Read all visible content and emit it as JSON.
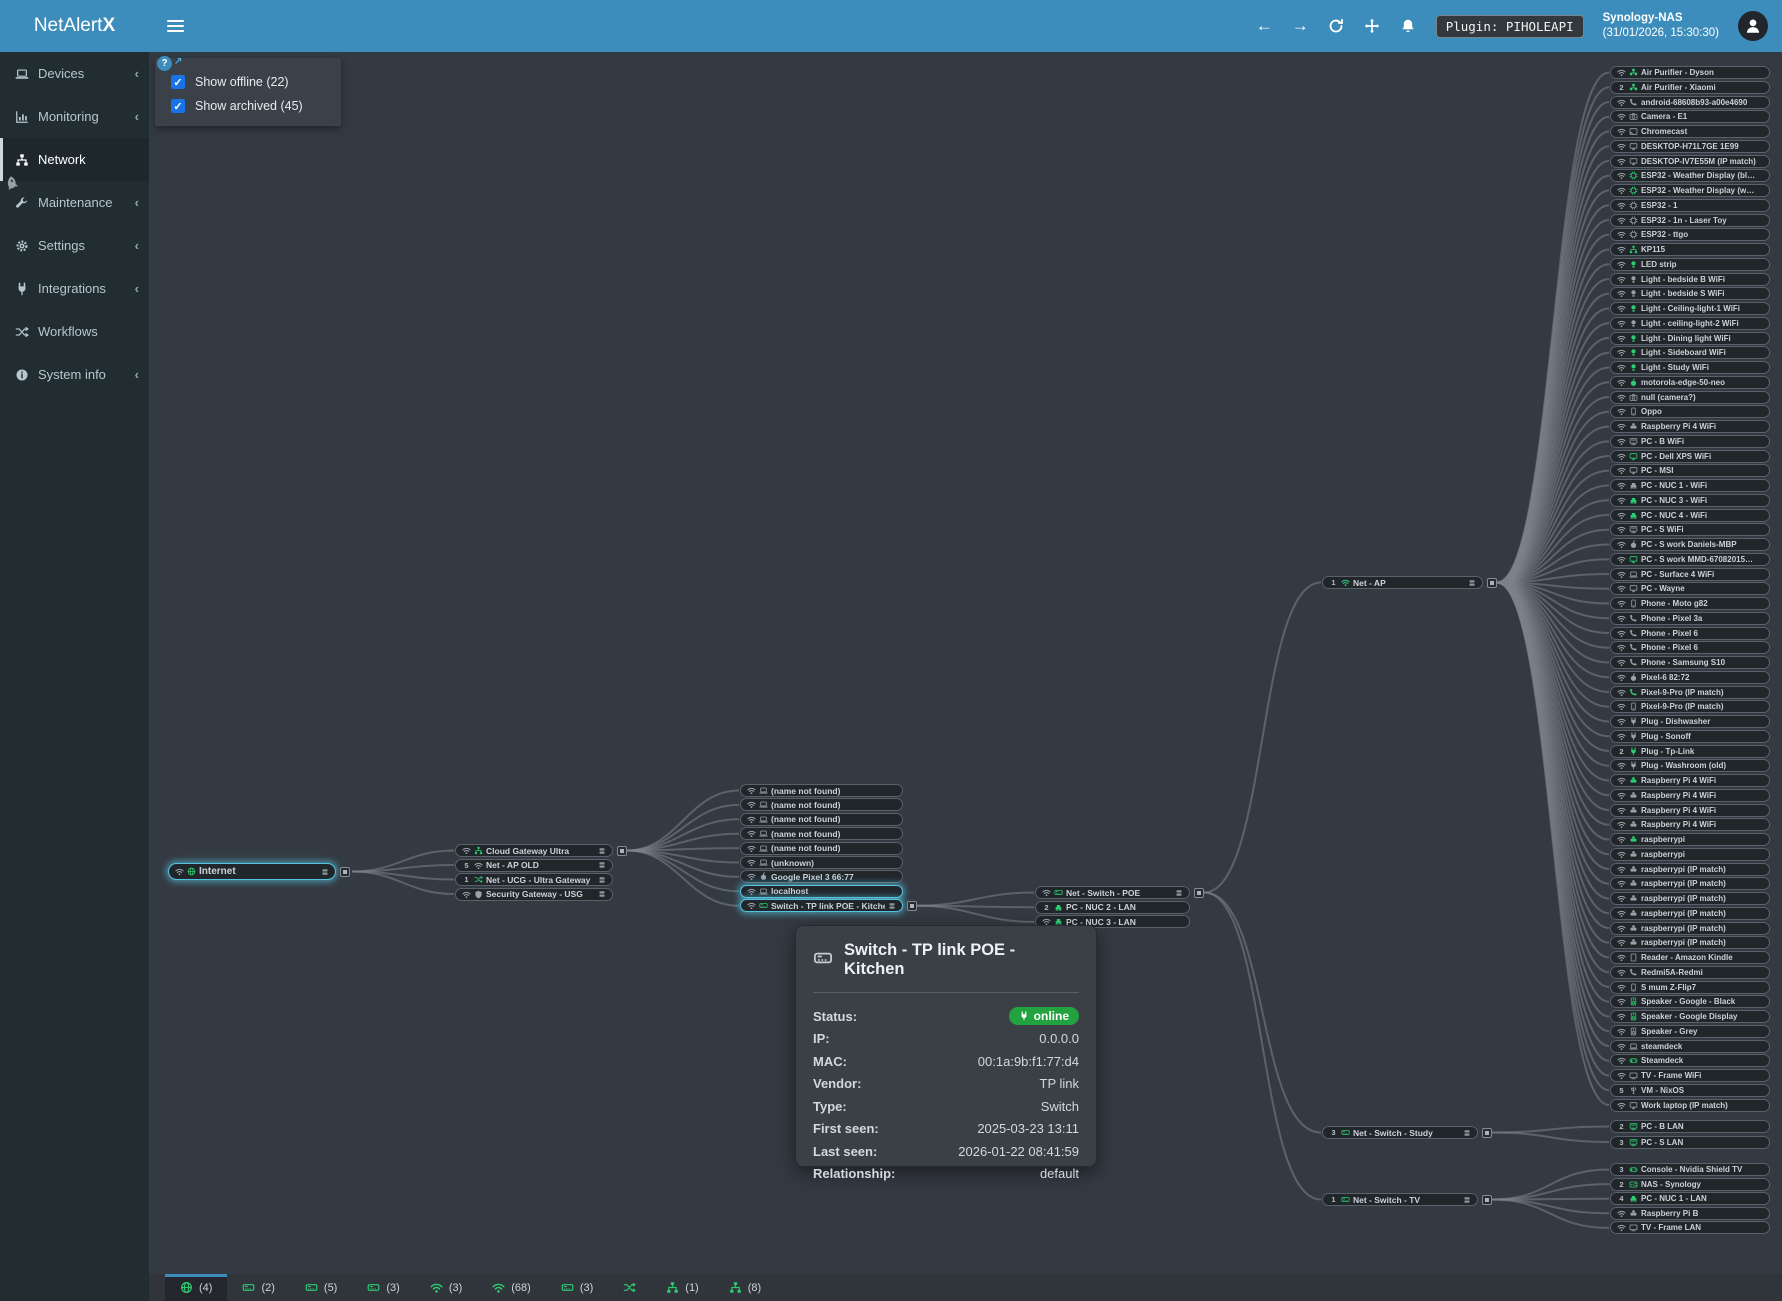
{
  "header": {
    "app_name": "NetAlert",
    "app_sup": "x",
    "nav_icons": [
      "back-arrow",
      "forward-arrow",
      "refresh",
      "move",
      "notifications"
    ],
    "plugin_badge": "Plugin: PIHOLEAPI",
    "device_name": "Synology-NAS",
    "timestamp": "(31/01/2026, 15:30:30)"
  },
  "sidebar": {
    "items": [
      {
        "label": "Devices",
        "icon": "laptop",
        "chevron": true
      },
      {
        "label": "Monitoring",
        "icon": "chart",
        "chevron": true
      },
      {
        "label": "Network",
        "icon": "hub",
        "chevron": false,
        "active": true
      },
      {
        "label": "Maintenance",
        "icon": "wrench",
        "chevron": true
      },
      {
        "label": "Settings",
        "icon": "gear",
        "chevron": true
      },
      {
        "label": "Integrations",
        "icon": "plug",
        "chevron": true
      },
      {
        "label": "Workflows",
        "icon": "shuffle",
        "chevron": false
      },
      {
        "label": "System info",
        "icon": "info",
        "chevron": true
      }
    ]
  },
  "filters": {
    "help": "?",
    "external_arrow": "↗",
    "offline_label": "Show offline (22)",
    "archived_label": "Show archived (45)",
    "offline_checked": true,
    "archived_checked": true
  },
  "graph": {
    "internet": {
      "label": "Internet",
      "icon": "globe",
      "green": true,
      "stack": true,
      "expand": true,
      "selected": true
    },
    "gateways": [
      {
        "label": "Cloud Gateway Ultra",
        "icon": "hub",
        "green": true,
        "stack": true,
        "expand": true
      },
      {
        "label": "Net - AP OLD",
        "icon": "wifi2",
        "prefix": "5",
        "stack": true
      },
      {
        "label": "Net - UCG - Ultra Gateway",
        "icon": "shuffle",
        "green": true,
        "prefix": "1",
        "stack": true
      },
      {
        "label": "Security Gateway - USG",
        "icon": "shield",
        "stack": true
      }
    ],
    "mid": [
      {
        "label": "(name not found)",
        "icon": "laptop"
      },
      {
        "label": "(name not found)",
        "icon": "laptop"
      },
      {
        "label": "(name not found)",
        "icon": "laptop"
      },
      {
        "label": "(name not found)",
        "icon": "laptop"
      },
      {
        "label": "(name not found)",
        "icon": "laptop"
      },
      {
        "label": "(unknown)",
        "icon": "laptop"
      },
      {
        "label": "Google Pixel 3 66:77",
        "icon": "apple"
      },
      {
        "label": "localhost",
        "icon": "laptop",
        "selected": true
      },
      {
        "label": "Switch - TP link POE - Kitchen",
        "icon": "switch",
        "green": true,
        "stack": true,
        "expand": true,
        "selected": true
      }
    ],
    "poe": [
      {
        "label": "Net - Switch - POE",
        "icon": "switch",
        "green": true,
        "stack": true,
        "expand": true
      },
      {
        "label": "PC - NUC 2 - LAN",
        "icon": "ethernet",
        "green": true,
        "prefix": "2"
      },
      {
        "label": "PC - NUC 3 - LAN",
        "icon": "ethernet",
        "green": true
      }
    ],
    "hubs": [
      {
        "label": "Net - AP",
        "icon": "wifi2",
        "green": true,
        "prefix": "1",
        "stack": true,
        "expand": true
      },
      {
        "label": "Net - Switch - Study",
        "icon": "switch",
        "green": true,
        "prefix": "3",
        "stack": true,
        "expand": true
      },
      {
        "label": "Net - Switch - TV",
        "icon": "switch",
        "green": true,
        "prefix": "1",
        "stack": true,
        "expand": true
      }
    ],
    "col1": [
      {
        "label": "Air Purifier - Dyson",
        "icon": "fan",
        "green": true
      },
      {
        "label": "Air Purifier - Xiaomi",
        "icon": "fan",
        "green": true,
        "prefix": "2"
      },
      {
        "label": "android-68608b93-a00e4690",
        "icon": "phone-handset"
      },
      {
        "label": "Camera - E1",
        "icon": "camera"
      },
      {
        "label": "Chromecast",
        "icon": "cast"
      },
      {
        "label": "DESKTOP-H71L7GE 1E99",
        "icon": "monitor"
      },
      {
        "label": "DESKTOP-IV7E55M (IP match)",
        "icon": "monitor"
      },
      {
        "label": "ESP32 - Weather Display (bl…",
        "icon": "chip",
        "green": true
      },
      {
        "label": "ESP32 - Weather Display (w…",
        "icon": "chip",
        "green": true
      },
      {
        "label": "ESP32 - 1",
        "icon": "chip"
      },
      {
        "label": "ESP32 - 1n - Laser Toy",
        "icon": "chip"
      },
      {
        "label": "ESP32 - ttgo",
        "icon": "chip"
      },
      {
        "label": "KP115",
        "icon": "hub",
        "green": true
      },
      {
        "label": "LED strip",
        "icon": "bulb",
        "green": true
      },
      {
        "label": "Light - bedside B WiFi",
        "icon": "bulb"
      },
      {
        "label": "Light - bedside S WiFi",
        "icon": "bulb"
      },
      {
        "label": "Light - Ceiling-light-1 WiFi",
        "icon": "bulb",
        "green": true
      },
      {
        "label": "Light - ceiling-light-2 WiFi",
        "icon": "bulb"
      },
      {
        "label": "Light - Dining light WiFi",
        "icon": "bulb",
        "green": true
      },
      {
        "label": "Light - Sideboard WiFi",
        "icon": "bulb",
        "green": true
      },
      {
        "label": "Light - Study WiFi",
        "icon": "bulb",
        "green": true
      },
      {
        "label": "motorola-edge-50-neo",
        "icon": "apple",
        "green": true
      },
      {
        "label": "null (camera?)",
        "icon": "camera"
      },
      {
        "label": "Oppo",
        "icon": "smartphone"
      },
      {
        "label": "Raspberry Pi 4 WiFi",
        "icon": "raspberry"
      },
      {
        "label": "PC - B WiFi",
        "icon": "desktop"
      },
      {
        "label": "PC - Dell XPS WiFi",
        "icon": "monitor",
        "green": true
      },
      {
        "label": "PC - MSI",
        "icon": "monitor"
      },
      {
        "label": "PC - NUC 1 - WiFi",
        "icon": "ethernet"
      },
      {
        "label": "PC - NUC 3 - WiFi",
        "icon": "ethernet",
        "green": true
      },
      {
        "label": "PC - NUC 4 - WiFi",
        "icon": "ethernet",
        "green": true
      },
      {
        "label": "PC - S WiFi",
        "icon": "desktop"
      },
      {
        "label": "PC - S work Daniels-MBP",
        "icon": "apple"
      },
      {
        "label": "PC - S work MMD-67082015…",
        "icon": "monitor",
        "green": true
      },
      {
        "label": "PC - Surface 4 WiFi",
        "icon": "laptop"
      },
      {
        "label": "PC - Wayne",
        "icon": "monitor"
      },
      {
        "label": "Phone - Moto g82",
        "icon": "smartphone"
      },
      {
        "label": "Phone - Pixel 3a",
        "icon": "phone-handset"
      },
      {
        "label": "Phone - Pixel 6",
        "icon": "phone-handset"
      },
      {
        "label": "Phone - Pixel 6",
        "icon": "phone-handset"
      },
      {
        "label": "Phone - Samsung S10",
        "icon": "phone-handset"
      },
      {
        "label": "Pixel-6 82:72",
        "icon": "apple"
      },
      {
        "label": "Pixel-9-Pro (IP match)",
        "icon": "phone-handset",
        "green": true
      },
      {
        "label": "Pixel-9-Pro (IP match)",
        "icon": "smartphone"
      },
      {
        "label": "Plug - Dishwasher",
        "icon": "plug"
      },
      {
        "label": "Plug - Sonoff",
        "icon": "plug"
      },
      {
        "label": "Plug - Tp-Link",
        "icon": "plug",
        "green": true,
        "prefix": "2"
      },
      {
        "label": "Plug - Washroom (old)",
        "icon": "plug"
      },
      {
        "label": "Raspberry Pi 4 WiFi",
        "icon": "raspberry",
        "green": true
      },
      {
        "label": "Raspberry Pi 4 WiFi",
        "icon": "raspberry"
      },
      {
        "label": "Raspberry Pi 4 WiFi",
        "icon": "raspberry"
      },
      {
        "label": "Raspberry Pi 4 WiFi",
        "icon": "raspberry"
      },
      {
        "label": "raspberrypi",
        "icon": "raspberry",
        "green": true
      },
      {
        "label": "raspberrypi",
        "icon": "raspberry"
      },
      {
        "label": "raspberrypi (IP match)",
        "icon": "raspberry"
      },
      {
        "label": "raspberrypi (IP match)",
        "icon": "raspberry"
      },
      {
        "label": "raspberrypi (IP match)",
        "icon": "raspberry"
      },
      {
        "label": "raspberrypi (IP match)",
        "icon": "raspberry"
      },
      {
        "label": "raspberrypi (IP match)",
        "icon": "raspberry"
      },
      {
        "label": "raspberrypi (IP match)",
        "icon": "raspberry"
      },
      {
        "label": "Reader - Amazon Kindle",
        "icon": "tablet"
      },
      {
        "label": "Redmi5A-Redmi",
        "icon": "phone-handset"
      },
      {
        "label": "S mum Z-Flip7",
        "icon": "smartphone"
      },
      {
        "label": "Speaker - Google - Black",
        "icon": "speaker",
        "green": true
      },
      {
        "label": "Speaker - Google Display",
        "icon": "speaker",
        "green": true
      },
      {
        "label": "Speaker - Grey",
        "icon": "speaker"
      },
      {
        "label": "steamdeck",
        "icon": "laptop"
      },
      {
        "label": "Steamdeck",
        "icon": "gamepad",
        "green": true
      },
      {
        "label": "TV - Frame WiFi",
        "icon": "tv"
      },
      {
        "label": "VM - NixOS",
        "icon": "usb",
        "prefix": "5"
      },
      {
        "label": "Work laptop (IP match)",
        "icon": "monitor"
      }
    ],
    "col2": [
      {
        "label": "PC - B LAN",
        "icon": "desktop",
        "green": true,
        "prefix": "2"
      },
      {
        "label": "PC - S LAN",
        "icon": "desktop",
        "green": true,
        "prefix": "3"
      }
    ],
    "col3": [
      {
        "label": "Console - Nvidia Shield TV",
        "icon": "gamepad",
        "green": true,
        "prefix": "3"
      },
      {
        "label": "NAS - Synology",
        "icon": "nas",
        "green": true,
        "prefix": "2"
      },
      {
        "label": "PC - NUC 1 - LAN",
        "icon": "ethernet",
        "green": true,
        "prefix": "4"
      },
      {
        "label": "Raspberry Pi B",
        "icon": "raspberry"
      },
      {
        "label": "TV - Frame LAN",
        "icon": "tv"
      }
    ]
  },
  "tooltip": {
    "icon": "switch",
    "title": "Switch - TP link POE - Kitchen",
    "rows": [
      {
        "label": "Status:",
        "value": "online",
        "pill": true
      },
      {
        "label": "IP:",
        "value": "0.0.0.0"
      },
      {
        "label": "MAC:",
        "value": "00:1a:9b:f1:77:d4"
      },
      {
        "label": "Vendor:",
        "value": "TP link"
      },
      {
        "label": "Type:",
        "value": "Switch"
      },
      {
        "label": "First seen:",
        "value": "2025-03-23 13:11"
      },
      {
        "label": "Last seen:",
        "value": "2026-01-22 08:41:59"
      },
      {
        "label": "Relationship:",
        "value": "default"
      }
    ]
  },
  "footer": {
    "tabs": [
      {
        "icon": "globe",
        "count": "(4)",
        "active": true
      },
      {
        "icon": "switch",
        "count": "(2)"
      },
      {
        "icon": "switch",
        "count": "(5)"
      },
      {
        "icon": "switch",
        "count": "(3)"
      },
      {
        "icon": "wifi",
        "count": "(3)"
      },
      {
        "icon": "wifi",
        "count": "(68)"
      },
      {
        "icon": "switch",
        "count": "(3)"
      },
      {
        "icon": "shuffle",
        "count": ""
      },
      {
        "icon": "hub",
        "count": "(1)"
      },
      {
        "icon": "hub",
        "count": "(8)"
      }
    ]
  },
  "colors": {
    "header": "#3c8dbc",
    "sidebar": "#222d32",
    "canvas": "#343a42",
    "node_green": "#2ecc71",
    "online_pill": "#23a33f",
    "selection_glow": "#55c4de",
    "checkbox_blue": "#1a73e8"
  }
}
